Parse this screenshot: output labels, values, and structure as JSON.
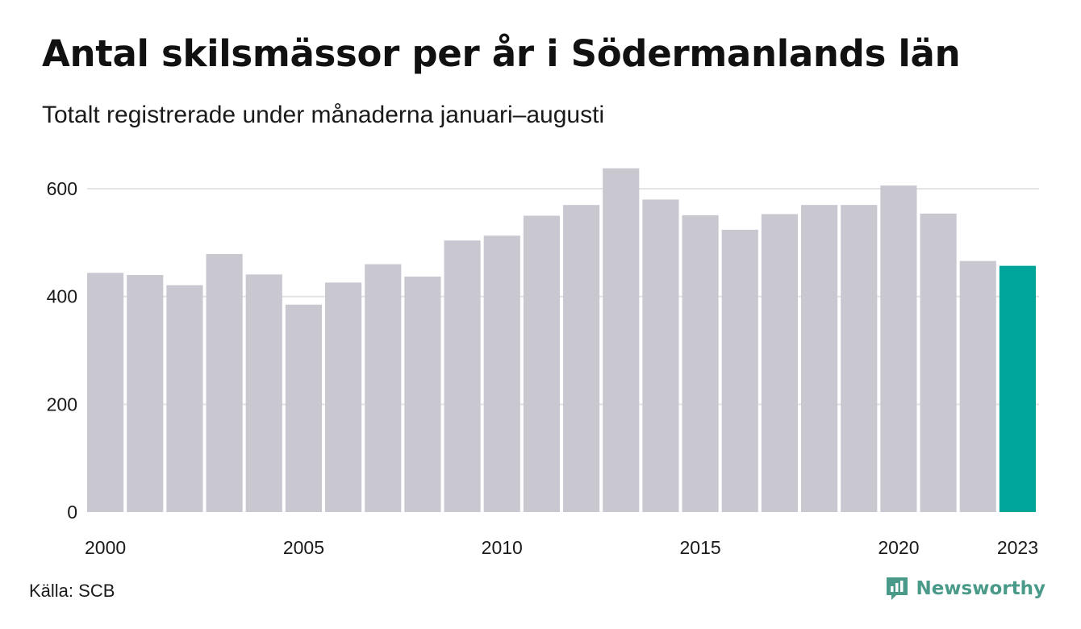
{
  "title": "Antal skilsmässor per år i Södermanlands län",
  "subtitle": "Totalt registrerade under månaderna januari–augusti",
  "source": "Källa: SCB",
  "brand": {
    "name": "Newsworthy",
    "icon": "newsworthy-logo-icon"
  },
  "colors": {
    "bar": "#c9c8d1",
    "highlight": "#00a59a",
    "grid": "#e3e3e6",
    "text": "#1a1a1a",
    "brand": "#4a9a8a"
  },
  "chart_data": {
    "type": "bar",
    "categories": [
      "2000",
      "2001",
      "2002",
      "2003",
      "2004",
      "2005",
      "2006",
      "2007",
      "2008",
      "2009",
      "2010",
      "2011",
      "2012",
      "2013",
      "2014",
      "2015",
      "2016",
      "2017",
      "2018",
      "2019",
      "2020",
      "2021",
      "2022",
      "2023"
    ],
    "values": [
      444,
      440,
      421,
      479,
      441,
      385,
      426,
      460,
      437,
      504,
      513,
      550,
      570,
      638,
      580,
      551,
      524,
      553,
      570,
      570,
      606,
      554,
      466,
      457
    ],
    "highlight_category": "2023",
    "x_tick_labels": [
      "2000",
      "2005",
      "2010",
      "2015",
      "2020",
      "2023"
    ],
    "y_ticks": [
      0,
      200,
      400,
      600
    ],
    "ylim": [
      0,
      660
    ],
    "xlabel": "",
    "ylabel": "",
    "grid": true,
    "legend": "none"
  }
}
